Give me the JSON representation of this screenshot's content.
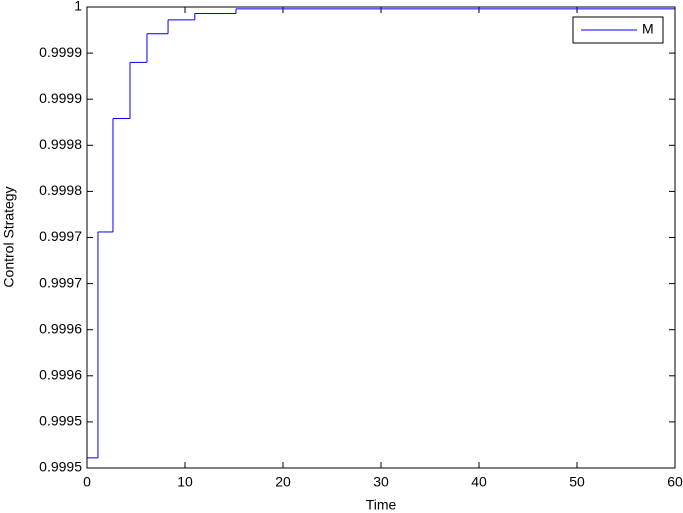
{
  "chart_data": {
    "type": "line",
    "drawstyle": "steps-post",
    "xlabel": "Time",
    "ylabel": "Control Strategy",
    "x": [
      0,
      1.12,
      2.65,
      4.39,
      6.12,
      8.27,
      11.0,
      15.2,
      60
    ],
    "series": [
      {
        "name": "M",
        "color": "#0000ff",
        "values": [
          0.999511,
          0.999756,
          0.999879,
          0.99994,
          0.999971,
          0.999986,
          0.999993,
          0.999998,
          0.999998
        ]
      }
    ],
    "xlim": [
      0,
      60
    ],
    "xticks": [
      0,
      10,
      20,
      30,
      40,
      50,
      60
    ],
    "ylim": [
      0.9995,
      1
    ],
    "yticks": [
      0.9995,
      {
        "value": 0.99955,
        "label": "0.9995"
      },
      0.9996,
      {
        "value": 0.99965,
        "label": "0.9996"
      },
      0.9997,
      {
        "value": 0.99975,
        "label": "0.9997"
      },
      0.9998,
      {
        "value": 0.99985,
        "label": "0.9998"
      },
      0.9999,
      {
        "value": 0.99995,
        "label": "0.9999"
      },
      1
    ],
    "legend": "upper right",
    "grid": false
  }
}
